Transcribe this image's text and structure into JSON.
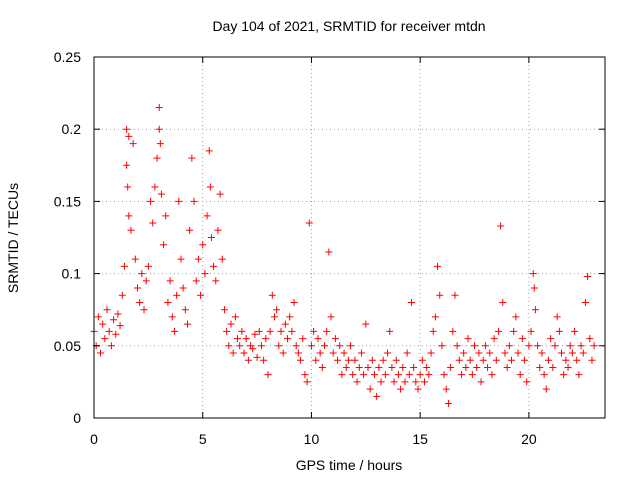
{
  "chart_data": {
    "type": "scatter",
    "title": "Day 104 of 2021, SRMTID for receiver mtdn",
    "xlabel": "GPS time / hours",
    "ylabel": "SRMTID / TECUs",
    "xlim": [
      0,
      23.5
    ],
    "ylim": [
      0,
      0.25
    ],
    "xticks": [
      0,
      5,
      10,
      15,
      20
    ],
    "xtick_labels": [
      "0",
      "5",
      "10",
      "15",
      "20"
    ],
    "yticks": [
      0,
      0.05,
      0.1,
      0.15,
      0.2,
      0.25
    ],
    "ytick_labels": [
      "0",
      "0.05",
      "0.1",
      "0.15",
      "0.2",
      "0.25"
    ],
    "grid": true,
    "marker": "+",
    "color": "#ff0000",
    "series": [
      {
        "name": "SRMTID",
        "points": [
          [
            0.0,
            0.06
          ],
          [
            0.1,
            0.05
          ],
          [
            0.2,
            0.07
          ],
          [
            0.3,
            0.045
          ],
          [
            0.4,
            0.065
          ],
          [
            0.5,
            0.055
          ],
          [
            0.6,
            0.075
          ],
          [
            0.7,
            0.06
          ],
          [
            0.8,
            0.05
          ],
          [
            0.9,
            0.068
          ],
          [
            1.0,
            0.058
          ],
          [
            1.1,
            0.072
          ],
          [
            1.2,
            0.064
          ],
          [
            1.3,
            0.085
          ],
          [
            1.4,
            0.105
          ],
          [
            1.5,
            0.2
          ],
          [
            1.5,
            0.175
          ],
          [
            1.55,
            0.16
          ],
          [
            1.6,
            0.195
          ],
          [
            1.6,
            0.14
          ],
          [
            1.7,
            0.13
          ],
          [
            1.8,
            0.19
          ],
          [
            1.9,
            0.11
          ],
          [
            2.0,
            0.09
          ],
          [
            2.1,
            0.08
          ],
          [
            2.2,
            0.1
          ],
          [
            2.3,
            0.075
          ],
          [
            2.4,
            0.095
          ],
          [
            2.5,
            0.105
          ],
          [
            2.6,
            0.15
          ],
          [
            2.7,
            0.135
          ],
          [
            2.8,
            0.16
          ],
          [
            2.9,
            0.18
          ],
          [
            3.0,
            0.215
          ],
          [
            3.0,
            0.2
          ],
          [
            3.05,
            0.19
          ],
          [
            3.1,
            0.155
          ],
          [
            3.2,
            0.12
          ],
          [
            3.3,
            0.14
          ],
          [
            3.4,
            0.08
          ],
          [
            3.5,
            0.095
          ],
          [
            3.6,
            0.07
          ],
          [
            3.7,
            0.06
          ],
          [
            3.8,
            0.085
          ],
          [
            3.9,
            0.15
          ],
          [
            4.0,
            0.11
          ],
          [
            4.1,
            0.09
          ],
          [
            4.2,
            0.075
          ],
          [
            4.3,
            0.065
          ],
          [
            4.4,
            0.13
          ],
          [
            4.5,
            0.18
          ],
          [
            4.6,
            0.15
          ],
          [
            4.7,
            0.095
          ],
          [
            4.8,
            0.11
          ],
          [
            4.9,
            0.085
          ],
          [
            5.0,
            0.12
          ],
          [
            5.1,
            0.1
          ],
          [
            5.2,
            0.14
          ],
          [
            5.3,
            0.185
          ],
          [
            5.35,
            0.16
          ],
          [
            5.4,
            0.125
          ],
          [
            5.5,
            0.105
          ],
          [
            5.6,
            0.095
          ],
          [
            5.7,
            0.13
          ],
          [
            5.8,
            0.155
          ],
          [
            5.9,
            0.11
          ],
          [
            6.0,
            0.075
          ],
          [
            6.1,
            0.06
          ],
          [
            6.2,
            0.05
          ],
          [
            6.3,
            0.065
          ],
          [
            6.4,
            0.045
          ],
          [
            6.5,
            0.07
          ],
          [
            6.6,
            0.055
          ],
          [
            6.7,
            0.05
          ],
          [
            6.8,
            0.06
          ],
          [
            6.9,
            0.045
          ],
          [
            7.0,
            0.055
          ],
          [
            7.1,
            0.04
          ],
          [
            7.2,
            0.05
          ],
          [
            7.3,
            0.048
          ],
          [
            7.4,
            0.058
          ],
          [
            7.5,
            0.042
          ],
          [
            7.6,
            0.06
          ],
          [
            7.7,
            0.05
          ],
          [
            7.8,
            0.04
          ],
          [
            7.9,
            0.055
          ],
          [
            8.0,
            0.03
          ],
          [
            8.1,
            0.06
          ],
          [
            8.2,
            0.085
          ],
          [
            8.3,
            0.07
          ],
          [
            8.4,
            0.075
          ],
          [
            8.5,
            0.05
          ],
          [
            8.6,
            0.06
          ],
          [
            8.7,
            0.045
          ],
          [
            8.8,
            0.065
          ],
          [
            8.9,
            0.055
          ],
          [
            9.0,
            0.07
          ],
          [
            9.1,
            0.06
          ],
          [
            9.2,
            0.08
          ],
          [
            9.3,
            0.05
          ],
          [
            9.4,
            0.045
          ],
          [
            9.5,
            0.04
          ],
          [
            9.6,
            0.055
          ],
          [
            9.7,
            0.03
          ],
          [
            9.8,
            0.025
          ],
          [
            9.9,
            0.135
          ],
          [
            10.0,
            0.05
          ],
          [
            10.1,
            0.06
          ],
          [
            10.2,
            0.04
          ],
          [
            10.3,
            0.055
          ],
          [
            10.4,
            0.045
          ],
          [
            10.5,
            0.035
          ],
          [
            10.6,
            0.05
          ],
          [
            10.7,
            0.06
          ],
          [
            10.8,
            0.115
          ],
          [
            10.9,
            0.07
          ],
          [
            11.0,
            0.045
          ],
          [
            11.1,
            0.055
          ],
          [
            11.2,
            0.04
          ],
          [
            11.3,
            0.05
          ],
          [
            11.4,
            0.03
          ],
          [
            11.5,
            0.045
          ],
          [
            11.6,
            0.035
          ],
          [
            11.7,
            0.04
          ],
          [
            11.8,
            0.05
          ],
          [
            11.9,
            0.03
          ],
          [
            12.0,
            0.04
          ],
          [
            12.1,
            0.025
          ],
          [
            12.2,
            0.035
          ],
          [
            12.3,
            0.045
          ],
          [
            12.4,
            0.03
          ],
          [
            12.5,
            0.065
          ],
          [
            12.6,
            0.035
          ],
          [
            12.7,
            0.02
          ],
          [
            12.8,
            0.04
          ],
          [
            12.9,
            0.03
          ],
          [
            13.0,
            0.015
          ],
          [
            13.1,
            0.035
          ],
          [
            13.2,
            0.025
          ],
          [
            13.3,
            0.04
          ],
          [
            13.4,
            0.03
          ],
          [
            13.5,
            0.045
          ],
          [
            13.6,
            0.06
          ],
          [
            13.7,
            0.035
          ],
          [
            13.8,
            0.025
          ],
          [
            13.9,
            0.04
          ],
          [
            14.0,
            0.03
          ],
          [
            14.1,
            0.02
          ],
          [
            14.2,
            0.035
          ],
          [
            14.3,
            0.025
          ],
          [
            14.4,
            0.045
          ],
          [
            14.5,
            0.03
          ],
          [
            14.6,
            0.08
          ],
          [
            14.7,
            0.035
          ],
          [
            14.8,
            0.025
          ],
          [
            14.9,
            0.02
          ],
          [
            15.0,
            0.03
          ],
          [
            15.1,
            0.04
          ],
          [
            15.2,
            0.025
          ],
          [
            15.3,
            0.035
          ],
          [
            15.4,
            0.03
          ],
          [
            15.5,
            0.045
          ],
          [
            15.6,
            0.06
          ],
          [
            15.7,
            0.07
          ],
          [
            15.8,
            0.105
          ],
          [
            15.9,
            0.085
          ],
          [
            16.0,
            0.05
          ],
          [
            16.1,
            0.03
          ],
          [
            16.2,
            0.02
          ],
          [
            16.3,
            0.01
          ],
          [
            16.4,
            0.035
          ],
          [
            16.5,
            0.06
          ],
          [
            16.6,
            0.085
          ],
          [
            16.7,
            0.05
          ],
          [
            16.8,
            0.04
          ],
          [
            16.9,
            0.03
          ],
          [
            17.0,
            0.045
          ],
          [
            17.1,
            0.035
          ],
          [
            17.2,
            0.055
          ],
          [
            17.3,
            0.04
          ],
          [
            17.4,
            0.03
          ],
          [
            17.5,
            0.05
          ],
          [
            17.6,
            0.035
          ],
          [
            17.7,
            0.045
          ],
          [
            17.8,
            0.025
          ],
          [
            17.9,
            0.04
          ],
          [
            18.0,
            0.05
          ],
          [
            18.1,
            0.035
          ],
          [
            18.2,
            0.045
          ],
          [
            18.3,
            0.03
          ],
          [
            18.4,
            0.055
          ],
          [
            18.5,
            0.04
          ],
          [
            18.6,
            0.06
          ],
          [
            18.7,
            0.133
          ],
          [
            18.8,
            0.08
          ],
          [
            18.9,
            0.045
          ],
          [
            19.0,
            0.035
          ],
          [
            19.1,
            0.05
          ],
          [
            19.2,
            0.04
          ],
          [
            19.3,
            0.06
          ],
          [
            19.4,
            0.07
          ],
          [
            19.5,
            0.045
          ],
          [
            19.6,
            0.03
          ],
          [
            19.7,
            0.055
          ],
          [
            19.8,
            0.04
          ],
          [
            19.9,
            0.025
          ],
          [
            20.0,
            0.05
          ],
          [
            20.1,
            0.06
          ],
          [
            20.2,
            0.1
          ],
          [
            20.25,
            0.09
          ],
          [
            20.3,
            0.075
          ],
          [
            20.4,
            0.05
          ],
          [
            20.5,
            0.035
          ],
          [
            20.6,
            0.045
          ],
          [
            20.7,
            0.03
          ],
          [
            20.8,
            0.02
          ],
          [
            20.9,
            0.04
          ],
          [
            21.0,
            0.055
          ],
          [
            21.1,
            0.035
          ],
          [
            21.2,
            0.05
          ],
          [
            21.3,
            0.07
          ],
          [
            21.4,
            0.06
          ],
          [
            21.5,
            0.045
          ],
          [
            21.6,
            0.03
          ],
          [
            21.7,
            0.04
          ],
          [
            21.8,
            0.035
          ],
          [
            21.9,
            0.05
          ],
          [
            22.0,
            0.045
          ],
          [
            22.1,
            0.06
          ],
          [
            22.2,
            0.04
          ],
          [
            22.3,
            0.03
          ],
          [
            22.4,
            0.05
          ],
          [
            22.5,
            0.045
          ],
          [
            22.6,
            0.08
          ],
          [
            22.7,
            0.098
          ],
          [
            22.8,
            0.055
          ],
          [
            22.9,
            0.04
          ],
          [
            23.0,
            0.05
          ]
        ]
      }
    ]
  }
}
